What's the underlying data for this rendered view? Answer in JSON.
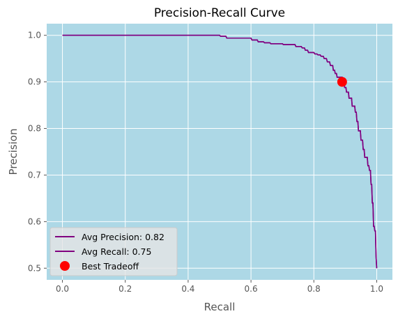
{
  "chart_data": {
    "type": "line",
    "title": "Precision-Recall Curve",
    "xlabel": "Recall",
    "ylabel": "Precision",
    "xlim": [
      -0.05,
      1.05
    ],
    "ylim": [
      0.475,
      1.025
    ],
    "xticks": [
      0.0,
      0.2,
      0.4,
      0.6,
      0.8,
      1.0
    ],
    "yticks": [
      0.5,
      0.6,
      0.7,
      0.8,
      0.9,
      1.0
    ],
    "xtick_labels": [
      "0.0",
      "0.2",
      "0.4",
      "0.6",
      "0.8",
      "1.0"
    ],
    "ytick_labels": [
      "0.5",
      "0.6",
      "0.7",
      "0.8",
      "0.9",
      "1.0"
    ],
    "grid": true,
    "plot_background": "#add8e6",
    "legend_placement": "lower-left",
    "series": [
      {
        "name": "Avg Precision: 0.82",
        "color": "#800080",
        "step": true,
        "x": [
          0.0,
          0.5,
          0.503,
          0.52,
          0.523,
          0.6,
          0.603,
          0.62,
          0.623,
          0.64,
          0.643,
          0.66,
          0.663,
          0.7,
          0.703,
          0.74,
          0.743,
          0.76,
          0.763,
          0.77,
          0.773,
          0.78,
          0.783,
          0.8,
          0.803,
          0.81,
          0.813,
          0.82,
          0.823,
          0.83,
          0.833,
          0.84,
          0.843,
          0.85,
          0.853,
          0.86,
          0.862,
          0.866,
          0.868,
          0.872,
          0.874,
          0.89,
          0.892,
          0.896,
          0.898,
          0.902,
          0.904,
          0.91,
          0.912,
          0.92,
          0.922,
          0.93,
          0.932,
          0.935,
          0.937,
          0.94,
          0.942,
          0.948,
          0.95,
          0.955,
          0.957,
          0.96,
          0.962,
          0.97,
          0.972,
          0.975,
          0.977,
          0.98,
          0.982,
          0.984,
          0.986,
          0.988,
          0.99,
          0.992,
          0.994,
          0.996,
          0.998,
          1.0
        ],
        "y": [
          1.0,
          1.0,
          0.998,
          0.998,
          0.994,
          0.994,
          0.99,
          0.99,
          0.986,
          0.986,
          0.984,
          0.984,
          0.982,
          0.982,
          0.98,
          0.98,
          0.976,
          0.976,
          0.973,
          0.973,
          0.968,
          0.968,
          0.963,
          0.963,
          0.96,
          0.96,
          0.958,
          0.958,
          0.955,
          0.955,
          0.95,
          0.95,
          0.943,
          0.943,
          0.935,
          0.935,
          0.925,
          0.925,
          0.918,
          0.918,
          0.91,
          0.91,
          0.9,
          0.9,
          0.888,
          0.888,
          0.878,
          0.878,
          0.865,
          0.865,
          0.848,
          0.848,
          0.835,
          0.835,
          0.815,
          0.815,
          0.795,
          0.795,
          0.775,
          0.775,
          0.755,
          0.755,
          0.738,
          0.738,
          0.72,
          0.72,
          0.71,
          0.71,
          0.68,
          0.68,
          0.64,
          0.64,
          0.59,
          0.59,
          0.58,
          0.58,
          0.525,
          0.5
        ]
      },
      {
        "name": "Avg Recall: 0.75",
        "color": "#800080",
        "step": true,
        "x": [
          0.0,
          0.5,
          0.503,
          0.52,
          0.523,
          0.6,
          0.603,
          0.62,
          0.623,
          0.64,
          0.643,
          0.66,
          0.663,
          0.7,
          0.703,
          0.74,
          0.743,
          0.76,
          0.763,
          0.77,
          0.773,
          0.78,
          0.783,
          0.8,
          0.803,
          0.81,
          0.813,
          0.82,
          0.823,
          0.83,
          0.833,
          0.84,
          0.843,
          0.85,
          0.853,
          0.86,
          0.862,
          0.866,
          0.868,
          0.872,
          0.874,
          0.89,
          0.892,
          0.896,
          0.898,
          0.902,
          0.904,
          0.91,
          0.912,
          0.92,
          0.922,
          0.93,
          0.932,
          0.935,
          0.937,
          0.94,
          0.942,
          0.948,
          0.95,
          0.955,
          0.957,
          0.96,
          0.962,
          0.97,
          0.972,
          0.975,
          0.977,
          0.98,
          0.982,
          0.984,
          0.986,
          0.988,
          0.99,
          0.992,
          0.994,
          0.996,
          0.998,
          1.0
        ],
        "y": [
          1.0,
          1.0,
          0.998,
          0.998,
          0.994,
          0.994,
          0.99,
          0.99,
          0.986,
          0.986,
          0.984,
          0.984,
          0.982,
          0.982,
          0.98,
          0.98,
          0.976,
          0.976,
          0.973,
          0.973,
          0.968,
          0.968,
          0.963,
          0.963,
          0.96,
          0.96,
          0.958,
          0.958,
          0.955,
          0.955,
          0.95,
          0.95,
          0.943,
          0.943,
          0.935,
          0.935,
          0.925,
          0.925,
          0.918,
          0.918,
          0.91,
          0.91,
          0.9,
          0.9,
          0.888,
          0.888,
          0.878,
          0.878,
          0.865,
          0.865,
          0.848,
          0.848,
          0.835,
          0.835,
          0.815,
          0.815,
          0.795,
          0.795,
          0.775,
          0.775,
          0.755,
          0.755,
          0.738,
          0.738,
          0.72,
          0.72,
          0.71,
          0.71,
          0.68,
          0.68,
          0.64,
          0.64,
          0.59,
          0.59,
          0.58,
          0.58,
          0.525,
          0.5
        ]
      }
    ],
    "points": [
      {
        "name": "Best Tradeoff",
        "x": 0.89,
        "y": 0.9,
        "color": "#ff0000"
      }
    ],
    "legend": [
      {
        "label": "Avg Precision: 0.82",
        "kind": "line",
        "color": "#800080"
      },
      {
        "label": "Avg Recall: 0.75",
        "kind": "line",
        "color": "#800080"
      },
      {
        "label": "Best Tradeoff",
        "kind": "marker",
        "color": "#ff0000"
      }
    ]
  }
}
